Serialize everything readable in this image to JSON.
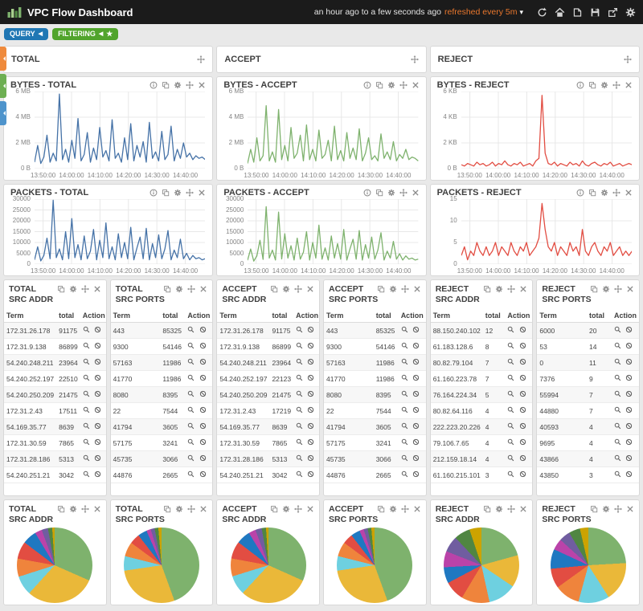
{
  "navbar": {
    "title": "VPC Flow Dashboard",
    "time_range": "an hour ago to a few seconds ago",
    "refresh_label": "refreshed every 5m",
    "icon_names": [
      "refresh",
      "home",
      "load",
      "save",
      "share",
      "configure"
    ]
  },
  "toolbar": {
    "query_label": "QUERY",
    "filtering_label": "FILTERING"
  },
  "group_headers": [
    {
      "title": "TOTAL"
    },
    {
      "title": "ACCEPT"
    },
    {
      "title": "REJECT"
    }
  ],
  "colors": {
    "accent_orange": "#E9772D",
    "query_blue": "#2077B4",
    "filter_green": "#51A42C",
    "total_series": "#4572A7",
    "accept_series": "#7EB26D",
    "reject_series": "#E24D42",
    "palette": [
      "#7EB26D",
      "#EAB839",
      "#6ED0E0",
      "#EF843C",
      "#E24D42",
      "#1F78C1",
      "#BA43A9",
      "#705DA0",
      "#508642",
      "#CCA300"
    ]
  },
  "chart_data": {
    "byte_charts": [
      {
        "type": "line",
        "title": "BYTES - TOTAL",
        "color": "#4572A7",
        "ymax": 6,
        "yticks": [
          {
            "v": 0,
            "label": "0 B"
          },
          {
            "v": 2,
            "label": "2 MB"
          },
          {
            "v": 4,
            "label": "4 MB"
          },
          {
            "v": 6,
            "label": "6 MB"
          }
        ],
        "xticks": [
          "13:50:00",
          "14:00:00",
          "14:10:00",
          "14:20:00",
          "14:30:00",
          "14:40:00"
        ],
        "values": [
          0.5,
          1.8,
          0.4,
          0.9,
          2.6,
          0.5,
          1.2,
          0.6,
          5.8,
          0.7,
          1.5,
          0.5,
          2.2,
          0.8,
          3.9,
          0.6,
          1.1,
          2.8,
          0.5,
          1.6,
          0.7,
          3.2,
          0.9,
          1.4,
          0.6,
          3.8,
          0.8,
          1.2,
          0.5,
          2.4,
          0.7,
          3.5,
          0.6,
          1.8,
          0.9,
          2.1,
          0.5,
          3.6,
          0.8,
          1.3,
          0.6,
          2.9,
          0.7,
          1.1,
          3.3,
          0.6,
          1.5,
          0.8,
          2.0,
          0.9,
          1.2,
          0.7,
          1.0,
          0.8,
          0.9,
          0.7
        ]
      },
      {
        "type": "line",
        "title": "BYTES - ACCEPT",
        "color": "#7EB26D",
        "ymax": 6,
        "yticks": [
          {
            "v": 0,
            "label": "0 B"
          },
          {
            "v": 2,
            "label": "2 MB"
          },
          {
            "v": 4,
            "label": "4 MB"
          },
          {
            "v": 6,
            "label": "6 MB"
          }
        ],
        "xticks": [
          "13:50:00",
          "14:00:00",
          "14:10:00",
          "14:20:00",
          "14:30:00",
          "14:40:00"
        ],
        "values": [
          0.4,
          1.5,
          0.5,
          2.4,
          0.6,
          1.0,
          4.9,
          0.6,
          1.3,
          0.5,
          4.6,
          0.7,
          1.8,
          0.6,
          3.2,
          0.8,
          1.2,
          2.6,
          0.6,
          3.4,
          0.7,
          1.5,
          0.6,
          3.0,
          0.8,
          1.1,
          2.2,
          0.6,
          3.3,
          0.7,
          1.4,
          0.6,
          2.8,
          0.8,
          1.6,
          0.7,
          3.1,
          0.6,
          1.2,
          2.4,
          0.7,
          1.0,
          0.6,
          2.7,
          0.8,
          1.3,
          0.7,
          2.1,
          0.6,
          1.1,
          0.8,
          1.5,
          0.7,
          0.9,
          0.8,
          0.6
        ]
      },
      {
        "type": "line",
        "title": "BYTES - REJECT",
        "color": "#E24D42",
        "ymax": 6,
        "yticks": [
          {
            "v": 0,
            "label": "0 B"
          },
          {
            "v": 2,
            "label": "2 KB"
          },
          {
            "v": 4,
            "label": "4 KB"
          },
          {
            "v": 6,
            "label": "6 KB"
          }
        ],
        "xticks": [
          "13:50:00",
          "14:00:00",
          "14:10:00",
          "14:20:00",
          "14:30:00",
          "14:40:00"
        ],
        "values": [
          0.3,
          0.2,
          0.4,
          0.3,
          0.2,
          0.5,
          0.3,
          0.4,
          0.2,
          0.3,
          0.5,
          0.2,
          0.4,
          0.3,
          0.6,
          0.3,
          0.2,
          0.4,
          0.3,
          0.5,
          0.2,
          0.3,
          0.4,
          0.2,
          0.6,
          0.8,
          5.7,
          1.2,
          0.4,
          0.3,
          0.5,
          0.2,
          0.4,
          0.3,
          0.2,
          0.5,
          0.3,
          0.4,
          0.2,
          0.6,
          0.3,
          0.2,
          0.4,
          0.5,
          0.3,
          0.2,
          0.4,
          0.3,
          0.5,
          0.2,
          0.3,
          0.4,
          0.2,
          0.3,
          0.4,
          0.3
        ]
      }
    ],
    "packet_charts": [
      {
        "type": "line",
        "title": "PACKETS - TOTAL",
        "color": "#4572A7",
        "ymax": 30000,
        "yticks": [
          {
            "v": 0,
            "label": "0"
          },
          {
            "v": 5000,
            "label": "5000"
          },
          {
            "v": 10000,
            "label": "10000"
          },
          {
            "v": 15000,
            "label": "15000"
          },
          {
            "v": 20000,
            "label": "20000"
          },
          {
            "v": 25000,
            "label": "25000"
          },
          {
            "v": 30000,
            "label": "30000"
          }
        ],
        "xticks": [
          "13:50:00",
          "14:00:00",
          "14:10:00",
          "14:20:00",
          "14:30:00",
          "14:40:00"
        ],
        "values": [
          2000,
          8000,
          1500,
          4000,
          12000,
          2500,
          29500,
          3000,
          7000,
          2000,
          15000,
          2500,
          21000,
          3000,
          9000,
          2000,
          13000,
          2500,
          6000,
          16000,
          2000,
          11000,
          3000,
          19000,
          2500,
          8000,
          2000,
          14000,
          3000,
          10000,
          2500,
          17000,
          2000,
          7500,
          12500,
          2500,
          16500,
          2000,
          9500,
          3000,
          13500,
          2500,
          7000,
          15500,
          2000,
          6500,
          3000,
          11500,
          2500,
          5000,
          2000,
          4000,
          2500,
          3000,
          2000,
          2500
        ]
      },
      {
        "type": "line",
        "title": "PACKETS - ACCEPT",
        "color": "#7EB26D",
        "ymax": 30000,
        "yticks": [
          {
            "v": 0,
            "label": "0"
          },
          {
            "v": 5000,
            "label": "5000"
          },
          {
            "v": 10000,
            "label": "10000"
          },
          {
            "v": 15000,
            "label": "15000"
          },
          {
            "v": 20000,
            "label": "20000"
          },
          {
            "v": 25000,
            "label": "25000"
          },
          {
            "v": 30000,
            "label": "30000"
          }
        ],
        "xticks": [
          "13:50:00",
          "14:00:00",
          "14:10:00",
          "14:20:00",
          "14:30:00",
          "14:40:00"
        ],
        "values": [
          1800,
          7000,
          1400,
          3800,
          11000,
          2200,
          26500,
          2800,
          6500,
          1900,
          24000,
          2400,
          14000,
          2800,
          8500,
          1900,
          12000,
          2300,
          5500,
          15000,
          1900,
          10000,
          2800,
          18000,
          2300,
          7500,
          1900,
          13000,
          2800,
          9500,
          2300,
          16000,
          1900,
          7000,
          11500,
          2300,
          15500,
          1900,
          9000,
          2800,
          12500,
          2300,
          6500,
          14500,
          1900,
          6000,
          2800,
          10500,
          2300,
          4800,
          1900,
          3800,
          2300,
          2800,
          1900,
          2300
        ]
      },
      {
        "type": "line",
        "title": "PACKETS - REJECT",
        "color": "#E24D42",
        "ymax": 15,
        "yticks": [
          {
            "v": 0,
            "label": "0"
          },
          {
            "v": 5,
            "label": "5"
          },
          {
            "v": 10,
            "label": "10"
          },
          {
            "v": 15,
            "label": "15"
          }
        ],
        "xticks": [
          "13:50:00",
          "14:00:00",
          "14:10:00",
          "14:20:00",
          "14:30:00",
          "14:40:00"
        ],
        "values": [
          2,
          4,
          1,
          3,
          2,
          5,
          3,
          2,
          4,
          2,
          3,
          5,
          2,
          4,
          3,
          2,
          5,
          3,
          2,
          4,
          3,
          5,
          2,
          3,
          4,
          6,
          14,
          8,
          4,
          3,
          5,
          2,
          4,
          3,
          2,
          5,
          3,
          4,
          2,
          8,
          3,
          2,
          4,
          5,
          3,
          2,
          4,
          3,
          5,
          2,
          3,
          4,
          2,
          3,
          2,
          3
        ]
      }
    ],
    "pie_charts": [
      {
        "type": "pie",
        "t1": "TOTAL",
        "t2": "SRC ADDR",
        "labels": [
          "172.31.26.178",
          "172.31.9.138",
          "54.240.248.211",
          "54.240.252.197",
          "54.240.250.209",
          "172.31.2.43",
          "54.169.35.77",
          "172.31.30.59",
          "172.31.28.186",
          "54.240.251.21"
        ],
        "values": [
          91175,
          86899,
          23964,
          22510,
          21475,
          17511,
          8639,
          7865,
          5313,
          3042
        ]
      },
      {
        "type": "pie",
        "t1": "TOTAL",
        "t2": "SRC PORTS",
        "labels": [
          "443",
          "9300",
          "57163",
          "41770",
          "8080",
          "22",
          "41794",
          "57175",
          "45735",
          "44876"
        ],
        "values": [
          85325,
          54146,
          11986,
          11986,
          8395,
          7544,
          3605,
          3241,
          3066,
          2665
        ]
      },
      {
        "type": "pie",
        "t1": "ACCEPT",
        "t2": "SRC ADDR",
        "labels": [
          "172.31.26.178",
          "172.31.9.138",
          "54.240.248.211",
          "54.240.252.197",
          "54.240.250.209",
          "172.31.2.43",
          "54.169.35.77",
          "172.31.30.59",
          "172.31.28.186",
          "54.240.251.21"
        ],
        "values": [
          91175,
          86899,
          23964,
          22123,
          21475,
          17219,
          8639,
          7865,
          5313,
          3042
        ]
      },
      {
        "type": "pie",
        "t1": "ACCEPT",
        "t2": "SRC PORTS",
        "labels": [
          "443",
          "9300",
          "57163",
          "41770",
          "8080",
          "22",
          "41794",
          "57175",
          "45735",
          "44876"
        ],
        "values": [
          85325,
          54146,
          11986,
          11986,
          8395,
          7544,
          3605,
          3241,
          3066,
          2665
        ]
      },
      {
        "type": "pie",
        "t1": "REJECT",
        "t2": "SRC ADDR",
        "labels": [
          "88.150.240.102",
          "61.183.128.6",
          "80.82.79.104",
          "61.160.223.78",
          "76.164.224.34",
          "80.82.64.116",
          "222.223.20.226",
          "79.106.7.65",
          "212.159.18.14",
          "61.160.215.101"
        ],
        "values": [
          12,
          8,
          7,
          7,
          5,
          4,
          4,
          4,
          4,
          3
        ]
      },
      {
        "type": "pie",
        "t1": "REJECT",
        "t2": "SRC PORTS",
        "labels": [
          "6000",
          "53",
          "0",
          "7376",
          "55994",
          "44880",
          "40593",
          "9695",
          "43866",
          "43850"
        ],
        "values": [
          20,
          14,
          11,
          9,
          7,
          7,
          4,
          4,
          4,
          3
        ]
      }
    ]
  },
  "tables": [
    {
      "t1": "TOTAL",
      "t2": "SRC ADDR",
      "cols": [
        "Term",
        "total",
        "Action"
      ],
      "rows": [
        {
          "term": "172.31.26.178",
          "total": "91175"
        },
        {
          "term": "172.31.9.138",
          "total": "86899"
        },
        {
          "term": "54.240.248.211",
          "total": "23964"
        },
        {
          "term": "54.240.252.197",
          "total": "22510"
        },
        {
          "term": "54.240.250.209",
          "total": "21475"
        },
        {
          "term": "172.31.2.43",
          "total": "17511"
        },
        {
          "term": "54.169.35.77",
          "total": "8639"
        },
        {
          "term": "172.31.30.59",
          "total": "7865"
        },
        {
          "term": "172.31.28.186",
          "total": "5313"
        },
        {
          "term": "54.240.251.21",
          "total": "3042"
        }
      ]
    },
    {
      "t1": "TOTAL",
      "t2": "SRC PORTS",
      "cols": [
        "Term",
        "total",
        "Action"
      ],
      "rows": [
        {
          "term": "443",
          "total": "85325"
        },
        {
          "term": "9300",
          "total": "54146"
        },
        {
          "term": "57163",
          "total": "11986"
        },
        {
          "term": "41770",
          "total": "11986"
        },
        {
          "term": "8080",
          "total": "8395"
        },
        {
          "term": "22",
          "total": "7544"
        },
        {
          "term": "41794",
          "total": "3605"
        },
        {
          "term": "57175",
          "total": "3241"
        },
        {
          "term": "45735",
          "total": "3066"
        },
        {
          "term": "44876",
          "total": "2665"
        }
      ]
    },
    {
      "t1": "ACCEPT",
      "t2": "SRC ADDR",
      "cols": [
        "Term",
        "total",
        "Action"
      ],
      "rows": [
        {
          "term": "172.31.26.178",
          "total": "91175"
        },
        {
          "term": "172.31.9.138",
          "total": "86899"
        },
        {
          "term": "54.240.248.211",
          "total": "23964"
        },
        {
          "term": "54.240.252.197",
          "total": "22123"
        },
        {
          "term": "54.240.250.209",
          "total": "21475"
        },
        {
          "term": "172.31.2.43",
          "total": "17219"
        },
        {
          "term": "54.169.35.77",
          "total": "8639"
        },
        {
          "term": "172.31.30.59",
          "total": "7865"
        },
        {
          "term": "172.31.28.186",
          "total": "5313"
        },
        {
          "term": "54.240.251.21",
          "total": "3042"
        }
      ]
    },
    {
      "t1": "ACCEPT",
      "t2": "SRC PORTS",
      "cols": [
        "Term",
        "total",
        "Action"
      ],
      "rows": [
        {
          "term": "443",
          "total": "85325"
        },
        {
          "term": "9300",
          "total": "54146"
        },
        {
          "term": "57163",
          "total": "11986"
        },
        {
          "term": "41770",
          "total": "11986"
        },
        {
          "term": "8080",
          "total": "8395"
        },
        {
          "term": "22",
          "total": "7544"
        },
        {
          "term": "41794",
          "total": "3605"
        },
        {
          "term": "57175",
          "total": "3241"
        },
        {
          "term": "45735",
          "total": "3066"
        },
        {
          "term": "44876",
          "total": "2665"
        }
      ]
    },
    {
      "t1": "REJECT",
      "t2": "SRC ADDR",
      "cols": [
        "Term",
        "total",
        "Action"
      ],
      "rows": [
        {
          "term": "88.150.240.102",
          "total": "12"
        },
        {
          "term": "61.183.128.6",
          "total": "8"
        },
        {
          "term": "80.82.79.104",
          "total": "7"
        },
        {
          "term": "61.160.223.78",
          "total": "7"
        },
        {
          "term": "76.164.224.34",
          "total": "5"
        },
        {
          "term": "80.82.64.116",
          "total": "4"
        },
        {
          "term": "222.223.20.226",
          "total": "4"
        },
        {
          "term": "79.106.7.65",
          "total": "4"
        },
        {
          "term": "212.159.18.14",
          "total": "4"
        },
        {
          "term": "61.160.215.101",
          "total": "3"
        }
      ]
    },
    {
      "t1": "REJECT",
      "t2": "SRC PORTS",
      "cols": [
        "Term",
        "total",
        "Action"
      ],
      "rows": [
        {
          "term": "6000",
          "total": "20"
        },
        {
          "term": "53",
          "total": "14"
        },
        {
          "term": "0",
          "total": "11"
        },
        {
          "term": "7376",
          "total": "9"
        },
        {
          "term": "55994",
          "total": "7"
        },
        {
          "term": "44880",
          "total": "7"
        },
        {
          "term": "40593",
          "total": "4"
        },
        {
          "term": "9695",
          "total": "4"
        },
        {
          "term": "43866",
          "total": "4"
        },
        {
          "term": "43850",
          "total": "3"
        }
      ]
    }
  ]
}
